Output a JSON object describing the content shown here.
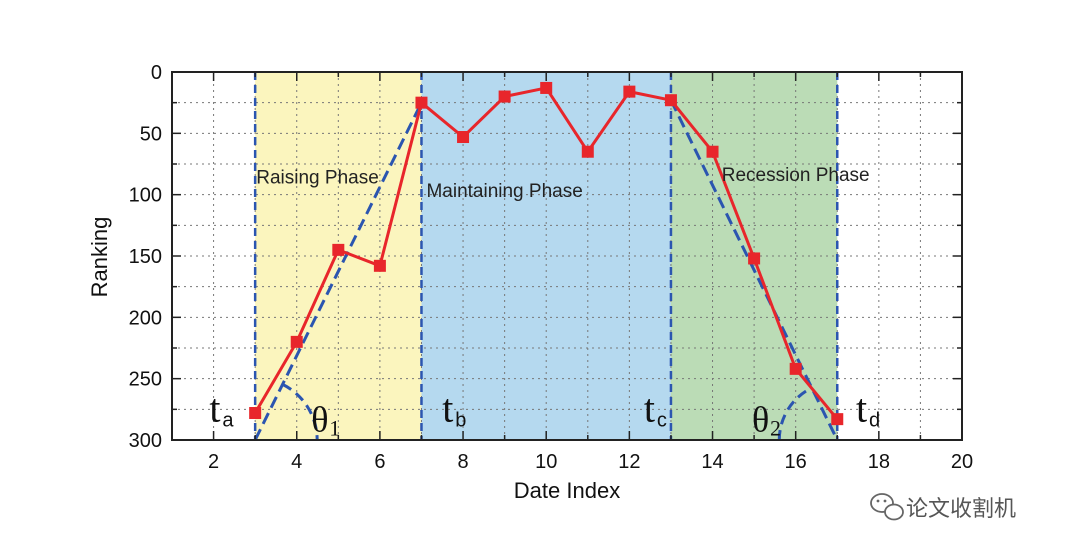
{
  "chart_data": {
    "type": "line",
    "xlabel": "Date Index",
    "ylabel": "Ranking",
    "xlim": [
      1,
      20
    ],
    "ylim": [
      0,
      300
    ],
    "y_inverted": true,
    "x_ticks": [
      2,
      4,
      6,
      8,
      10,
      12,
      14,
      16,
      18,
      20
    ],
    "y_ticks": [
      0,
      50,
      100,
      150,
      200,
      250,
      300
    ],
    "grid": "dotted",
    "series": [
      {
        "color": "#e8262b",
        "x": [
          3,
          4,
          5,
          6,
          7,
          8,
          9,
          10,
          11,
          12,
          13,
          14,
          15,
          16,
          17
        ],
        "y": [
          278,
          220,
          145,
          158,
          25,
          53,
          20,
          13,
          65,
          16,
          23,
          65,
          152,
          242,
          283
        ]
      }
    ],
    "phases": [
      {
        "label": "Raising Phase",
        "x_start": 3,
        "x_end": 7,
        "color": "#fbf5be"
      },
      {
        "label": "Maintaining Phase",
        "x_start": 7,
        "x_end": 13,
        "color": "#b5d9ef"
      },
      {
        "label": "Recession Phase",
        "x_start": 13,
        "x_end": 17,
        "color": "#bbdcb6"
      }
    ],
    "boundaries": [
      {
        "main": "t",
        "sub": "a",
        "x": 3
      },
      {
        "main": "t",
        "sub": "b",
        "x": 7
      },
      {
        "main": "t",
        "sub": "c",
        "x": 13
      },
      {
        "main": "t",
        "sub": "d",
        "x": 17
      }
    ],
    "trend_lines": [
      {
        "color": "#2b55b0",
        "x": [
          3,
          7
        ],
        "y": [
          300,
          25
        ]
      },
      {
        "color": "#2b55b0",
        "x": [
          13,
          17
        ],
        "y": [
          23,
          300
        ]
      }
    ],
    "angles": [
      {
        "main": "θ",
        "sub": "1"
      },
      {
        "main": "θ",
        "sub": "2"
      }
    ]
  },
  "watermark": "论文收割机",
  "watermark_icon": "wechat-icon"
}
